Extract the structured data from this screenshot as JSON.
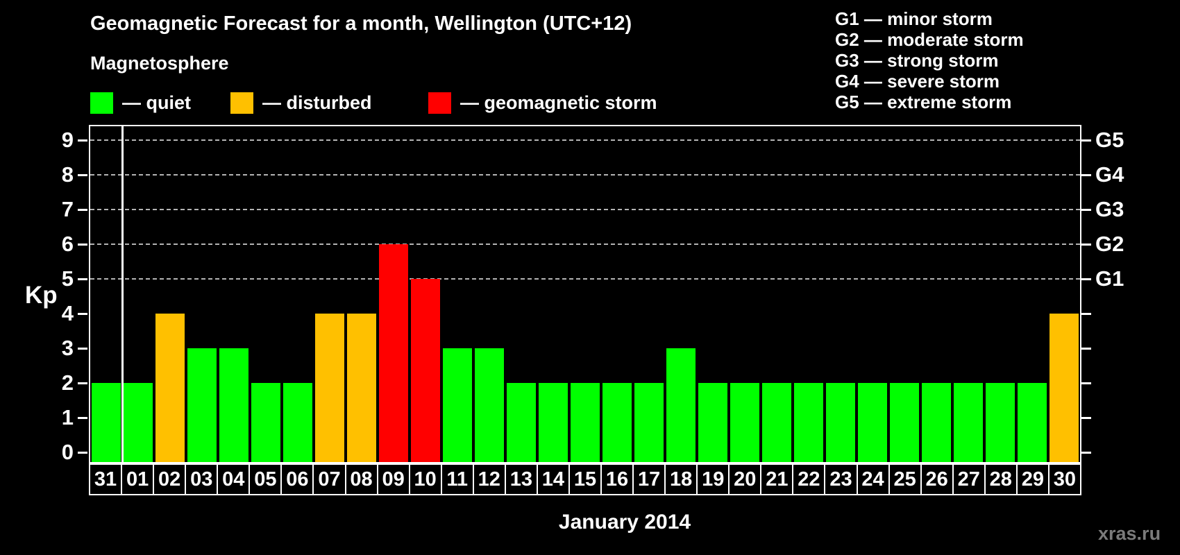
{
  "title": "Geomagnetic Forecast for a month, Wellington (UTC+12)",
  "subtitle": "Magnetosphere",
  "legend": {
    "items": [
      {
        "state": "quiet",
        "label": "— quiet"
      },
      {
        "state": "disturbed",
        "label": "— disturbed"
      },
      {
        "state": "storm",
        "label": "— geomagnetic storm"
      }
    ]
  },
  "g_legend": {
    "lines": [
      "G1 — minor storm",
      "G2 — moderate storm",
      "G3 — strong storm",
      "G4 — severe storm",
      "G5 — extreme storm"
    ]
  },
  "watermark": "xras.ru",
  "chart_data": {
    "type": "bar",
    "title": "Geomagnetic Forecast for a month, Wellington (UTC+12)",
    "xlabel": "January 2014",
    "ylabel": "Kp",
    "ylim": [
      0,
      9
    ],
    "yticks": [
      0,
      1,
      2,
      3,
      4,
      5,
      6,
      7,
      8,
      9
    ],
    "grid_levels": [
      5,
      6,
      7,
      8,
      9
    ],
    "grid_on": true,
    "legend_position": "top",
    "right_axis_labels": [
      {
        "level": 5,
        "text": "G1"
      },
      {
        "level": 6,
        "text": "G2"
      },
      {
        "level": 7,
        "text": "G3"
      },
      {
        "level": 8,
        "text": "G4"
      },
      {
        "level": 9,
        "text": "G5"
      }
    ],
    "categories": [
      "31",
      "01",
      "02",
      "03",
      "04",
      "05",
      "06",
      "07",
      "08",
      "09",
      "10",
      "11",
      "12",
      "13",
      "14",
      "15",
      "16",
      "17",
      "18",
      "19",
      "20",
      "21",
      "22",
      "23",
      "24",
      "25",
      "26",
      "27",
      "28",
      "29",
      "30"
    ],
    "values": [
      2,
      2,
      4,
      3,
      3,
      2,
      2,
      4,
      4,
      6,
      5,
      3,
      3,
      2,
      2,
      2,
      2,
      2,
      3,
      2,
      2,
      2,
      2,
      2,
      2,
      2,
      2,
      2,
      2,
      2,
      4
    ],
    "states": [
      "quiet",
      "quiet",
      "disturbed",
      "quiet",
      "quiet",
      "quiet",
      "quiet",
      "disturbed",
      "disturbed",
      "storm",
      "storm",
      "quiet",
      "quiet",
      "quiet",
      "quiet",
      "quiet",
      "quiet",
      "quiet",
      "quiet",
      "quiet",
      "quiet",
      "quiet",
      "quiet",
      "quiet",
      "quiet",
      "quiet",
      "quiet",
      "quiet",
      "quiet",
      "quiet",
      "disturbed"
    ],
    "state_colors": {
      "quiet": "#00ff00",
      "disturbed": "#ffc000",
      "storm": "#ff0000"
    },
    "separator_after_index": 0
  }
}
